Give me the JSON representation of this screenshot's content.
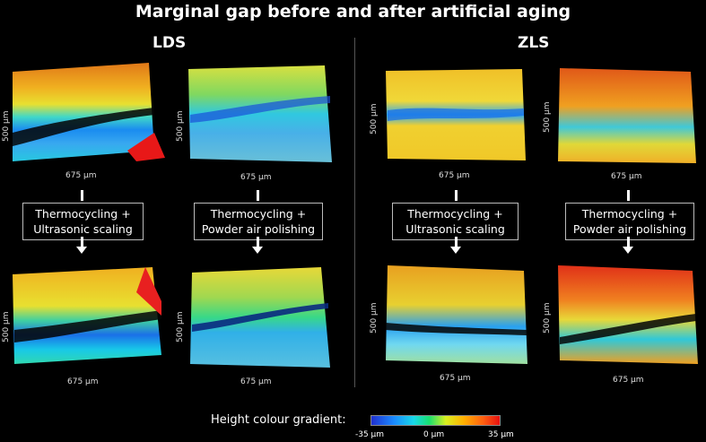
{
  "title": "Marginal gap before and after artificial aging",
  "groups": {
    "lds": {
      "label": "LDS"
    },
    "zls": {
      "label": "ZLS"
    }
  },
  "axes": {
    "x_label": "675 µm",
    "y_label": "500 µm"
  },
  "process": {
    "ultrasonic": {
      "line1": "Thermocycling +",
      "line2": "Ultrasonic scaling"
    },
    "powder": {
      "line1": "Thermocycling +",
      "line2": "Powder air polishing"
    }
  },
  "legend": {
    "label": "Height colour gradient:",
    "min": "-35 µm",
    "mid": "0 µm",
    "max": "35 µm"
  },
  "colors": {
    "low": "#1a3cd8",
    "mid_low": "#18c8e8",
    "mid": "#30e060",
    "mid_high": "#f0e020",
    "high_orange": "#ff9010",
    "high": "#e81818",
    "gap": "#050505"
  }
}
